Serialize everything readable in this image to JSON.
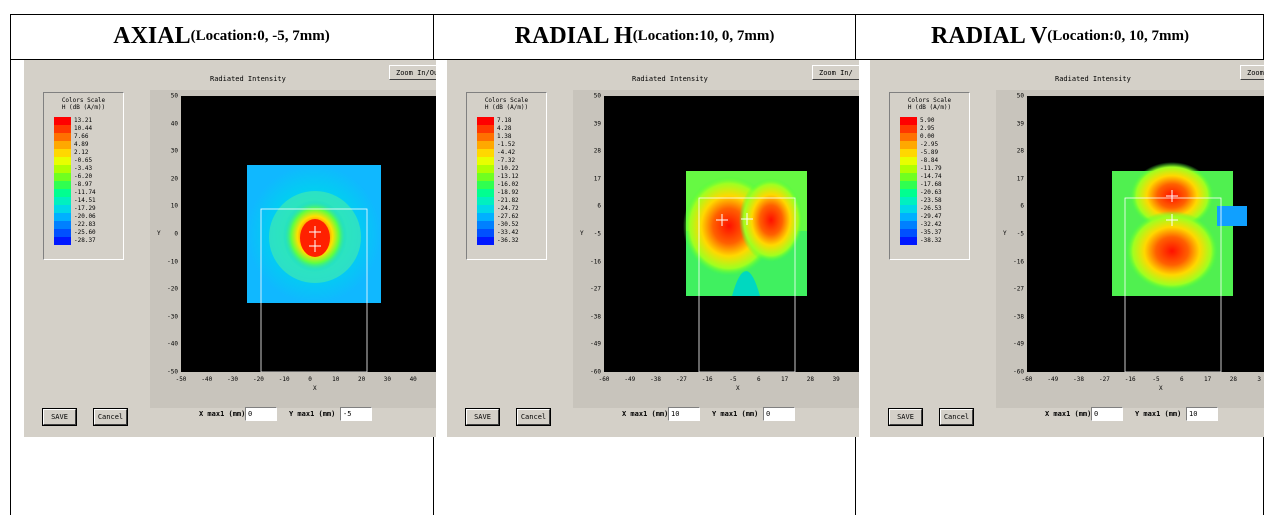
{
  "columns": [
    {
      "title": "AXIAL",
      "subtitle": "(Location:0, -5, 7mm)",
      "window_title": "Radiated Intensity",
      "zoom_label": "Zoom In/Out",
      "legend_title1": "Colors Scale",
      "legend_title2": "H (dB (A/m))",
      "legend_values": [
        "13.21",
        "10.44",
        "7.66",
        "4.89",
        "2.12",
        "-0.65",
        "-3.43",
        "-6.20",
        "-8.97",
        "-11.74",
        "-14.51",
        "-17.29",
        "-20.06",
        "-22.83",
        "-25.60",
        "-28.37"
      ],
      "y_ticks": [
        "50",
        "40",
        "30",
        "20",
        "10",
        "0",
        "-10",
        "-20",
        "-30",
        "-40",
        "-50"
      ],
      "x_ticks": [
        "-50",
        "-40",
        "-30",
        "-20",
        "-10",
        "0",
        "10",
        "20",
        "30",
        "40"
      ],
      "x_label": "X",
      "y_label": "Y",
      "save_label": "SAVE",
      "cancel_label": "Cancel",
      "xmax_label": "X max1 (mm)",
      "xmax_value": "0",
      "ymax_label": "Y max1 (mm)",
      "ymax_value": "-5"
    },
    {
      "title": "RADIAL H",
      "subtitle": "(Location:10, 0, 7mm)",
      "window_title": "Radiated Intensity",
      "zoom_label": "Zoom In/",
      "legend_title1": "Colors Scale",
      "legend_title2": "H (dB (A/m))",
      "legend_values": [
        "7.18",
        "4.28",
        "1.38",
        "-1.52",
        "-4.42",
        "-7.32",
        "-10.22",
        "-13.12",
        "-16.02",
        "-18.92",
        "-21.82",
        "-24.72",
        "-27.62",
        "-30.52",
        "-33.42",
        "-36.32"
      ],
      "y_ticks": [
        "50",
        "39",
        "28",
        "17",
        "6",
        "-5",
        "-16",
        "-27",
        "-38",
        "-49",
        "-60"
      ],
      "x_ticks": [
        "-60",
        "-49",
        "-38",
        "-27",
        "-16",
        "-5",
        "6",
        "17",
        "28",
        "39"
      ],
      "x_label": "X",
      "y_label": "Y",
      "save_label": "SAVE",
      "cancel_label": "Cancel",
      "xmax_label": "X max1 (mm)",
      "xmax_value": "10",
      "ymax_label": "Y max1 (mm)",
      "ymax_value": "0"
    },
    {
      "title": "RADIAL V",
      "subtitle": "(Location:0, 10, 7mm)",
      "window_title": "Radiated Intensity",
      "zoom_label": "Zoom I",
      "legend_title1": "Colors Scale",
      "legend_title2": "H (dB (A/m))",
      "legend_values": [
        "5.90",
        "2.95",
        "0.00",
        "-2.95",
        "-5.89",
        "-8.84",
        "-11.79",
        "-14.74",
        "-17.68",
        "-20.63",
        "-23.58",
        "-26.53",
        "-29.47",
        "-32.42",
        "-35.37",
        "-38.32"
      ],
      "y_ticks": [
        "50",
        "39",
        "28",
        "17",
        "6",
        "-5",
        "-16",
        "-27",
        "-38",
        "-49",
        "-60"
      ],
      "x_ticks": [
        "-60",
        "-49",
        "-38",
        "-27",
        "-16",
        "-5",
        "6",
        "17",
        "28",
        "3"
      ],
      "x_label": "X",
      "y_label": "Y",
      "save_label": "SAVE",
      "cancel_label": "Cancel",
      "xmax_label": "X max1 (mm)",
      "xmax_value": "0",
      "ymax_label": "Y max1 (mm)",
      "ymax_value": "10"
    }
  ],
  "colors": {
    "scale": [
      "#ff0000",
      "#ff3800",
      "#ff7000",
      "#ffa800",
      "#ffd800",
      "#e8ff00",
      "#b0ff00",
      "#70ff20",
      "#30ff50",
      "#00ff90",
      "#00f0c0",
      "#00d8e8",
      "#00b0ff",
      "#0080ff",
      "#0050ff",
      "#0018ff"
    ],
    "background": "#000000"
  }
}
